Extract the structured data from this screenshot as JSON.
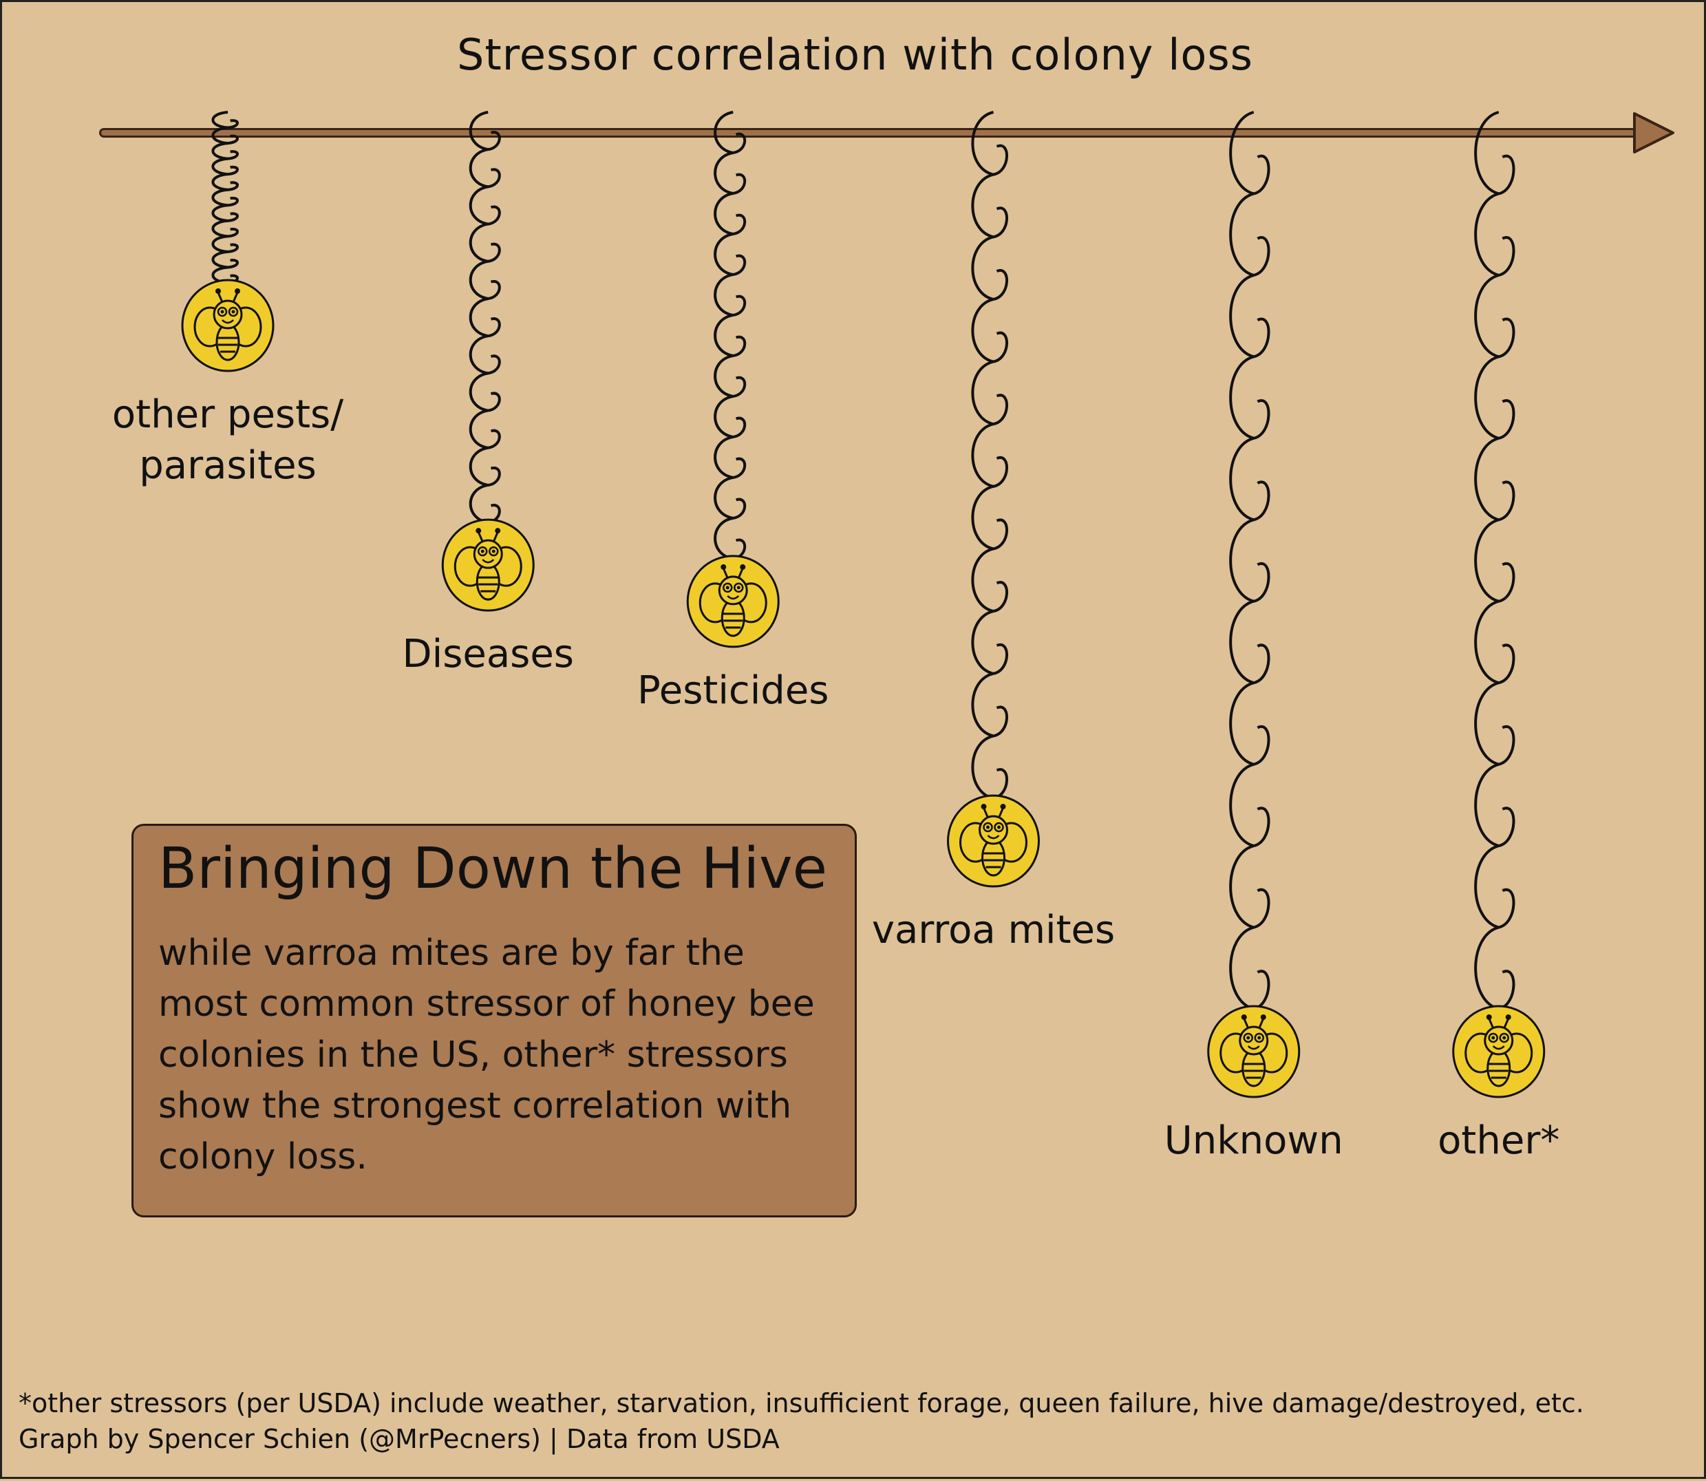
{
  "chart_data": {
    "type": "scatter",
    "title": "Bringing Down the Hive",
    "xlabel": "Stressor correlation with colony loss",
    "ylabel": "",
    "xlim": [
      0,
      1
    ],
    "points": [
      {
        "label_lines": [
          "other pests/",
          "parasites"
        ],
        "x": 0.08,
        "y": 0.0
      },
      {
        "label_lines": [
          "Diseases"
        ],
        "x": 0.25,
        "y": 0.33
      },
      {
        "label_lines": [
          "Pesticides"
        ],
        "x": 0.41,
        "y": 0.38
      },
      {
        "label_lines": [
          "varroa mites"
        ],
        "x": 0.58,
        "y": 0.71
      },
      {
        "label_lines": [
          "Unknown"
        ],
        "x": 0.75,
        "y": 1.0
      },
      {
        "label_lines": [
          "other*"
        ],
        "x": 0.91,
        "y": 1.0
      }
    ]
  },
  "info": {
    "title": "Bringing Down the Hive",
    "body": "while varroa mites are by far the most common stressor of honey bee colonies in the US, other* stressors show the strongest correlation with colony loss."
  },
  "footnote": {
    "line1": "*other stressors (per USDA) include weather, starvation, insufficient forage, queen failure, hive damage/destroyed, etc.",
    "line2": "Graph by Spencer Schien (@MrPecners) | Data from USDA"
  },
  "colors": {
    "background": "#dec197",
    "axis": "#a0704a",
    "box": "#ab7b53",
    "bee": "#f0cc2a",
    "ink": "#111111"
  }
}
